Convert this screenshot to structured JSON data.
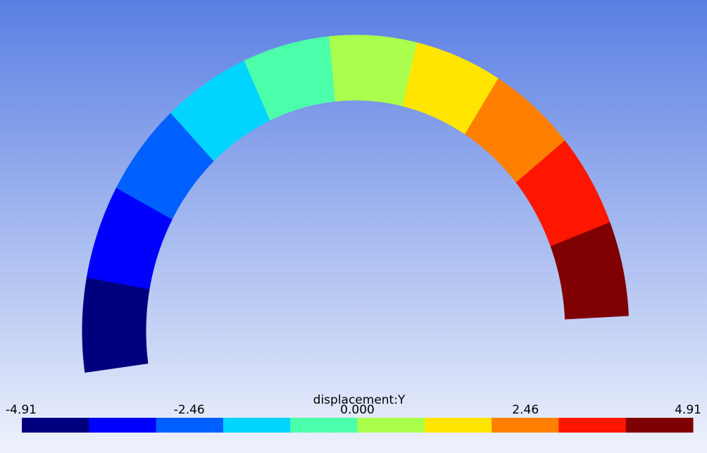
{
  "colorbar": {
    "title": "displacement:Y",
    "range": [
      -4.91,
      4.91
    ],
    "ticks": [
      -4.91,
      -2.46,
      {
        "value": 0,
        "label": "0.000"
      },
      2.46,
      4.91
    ],
    "colors": [
      "#00007f",
      "#0000ff",
      "#0060ff",
      "#00d4ff",
      "#4cffaa",
      "#aaff4c",
      "#ffe500",
      "#ff7f00",
      "#ff1600",
      "#7f0000"
    ]
  }
}
